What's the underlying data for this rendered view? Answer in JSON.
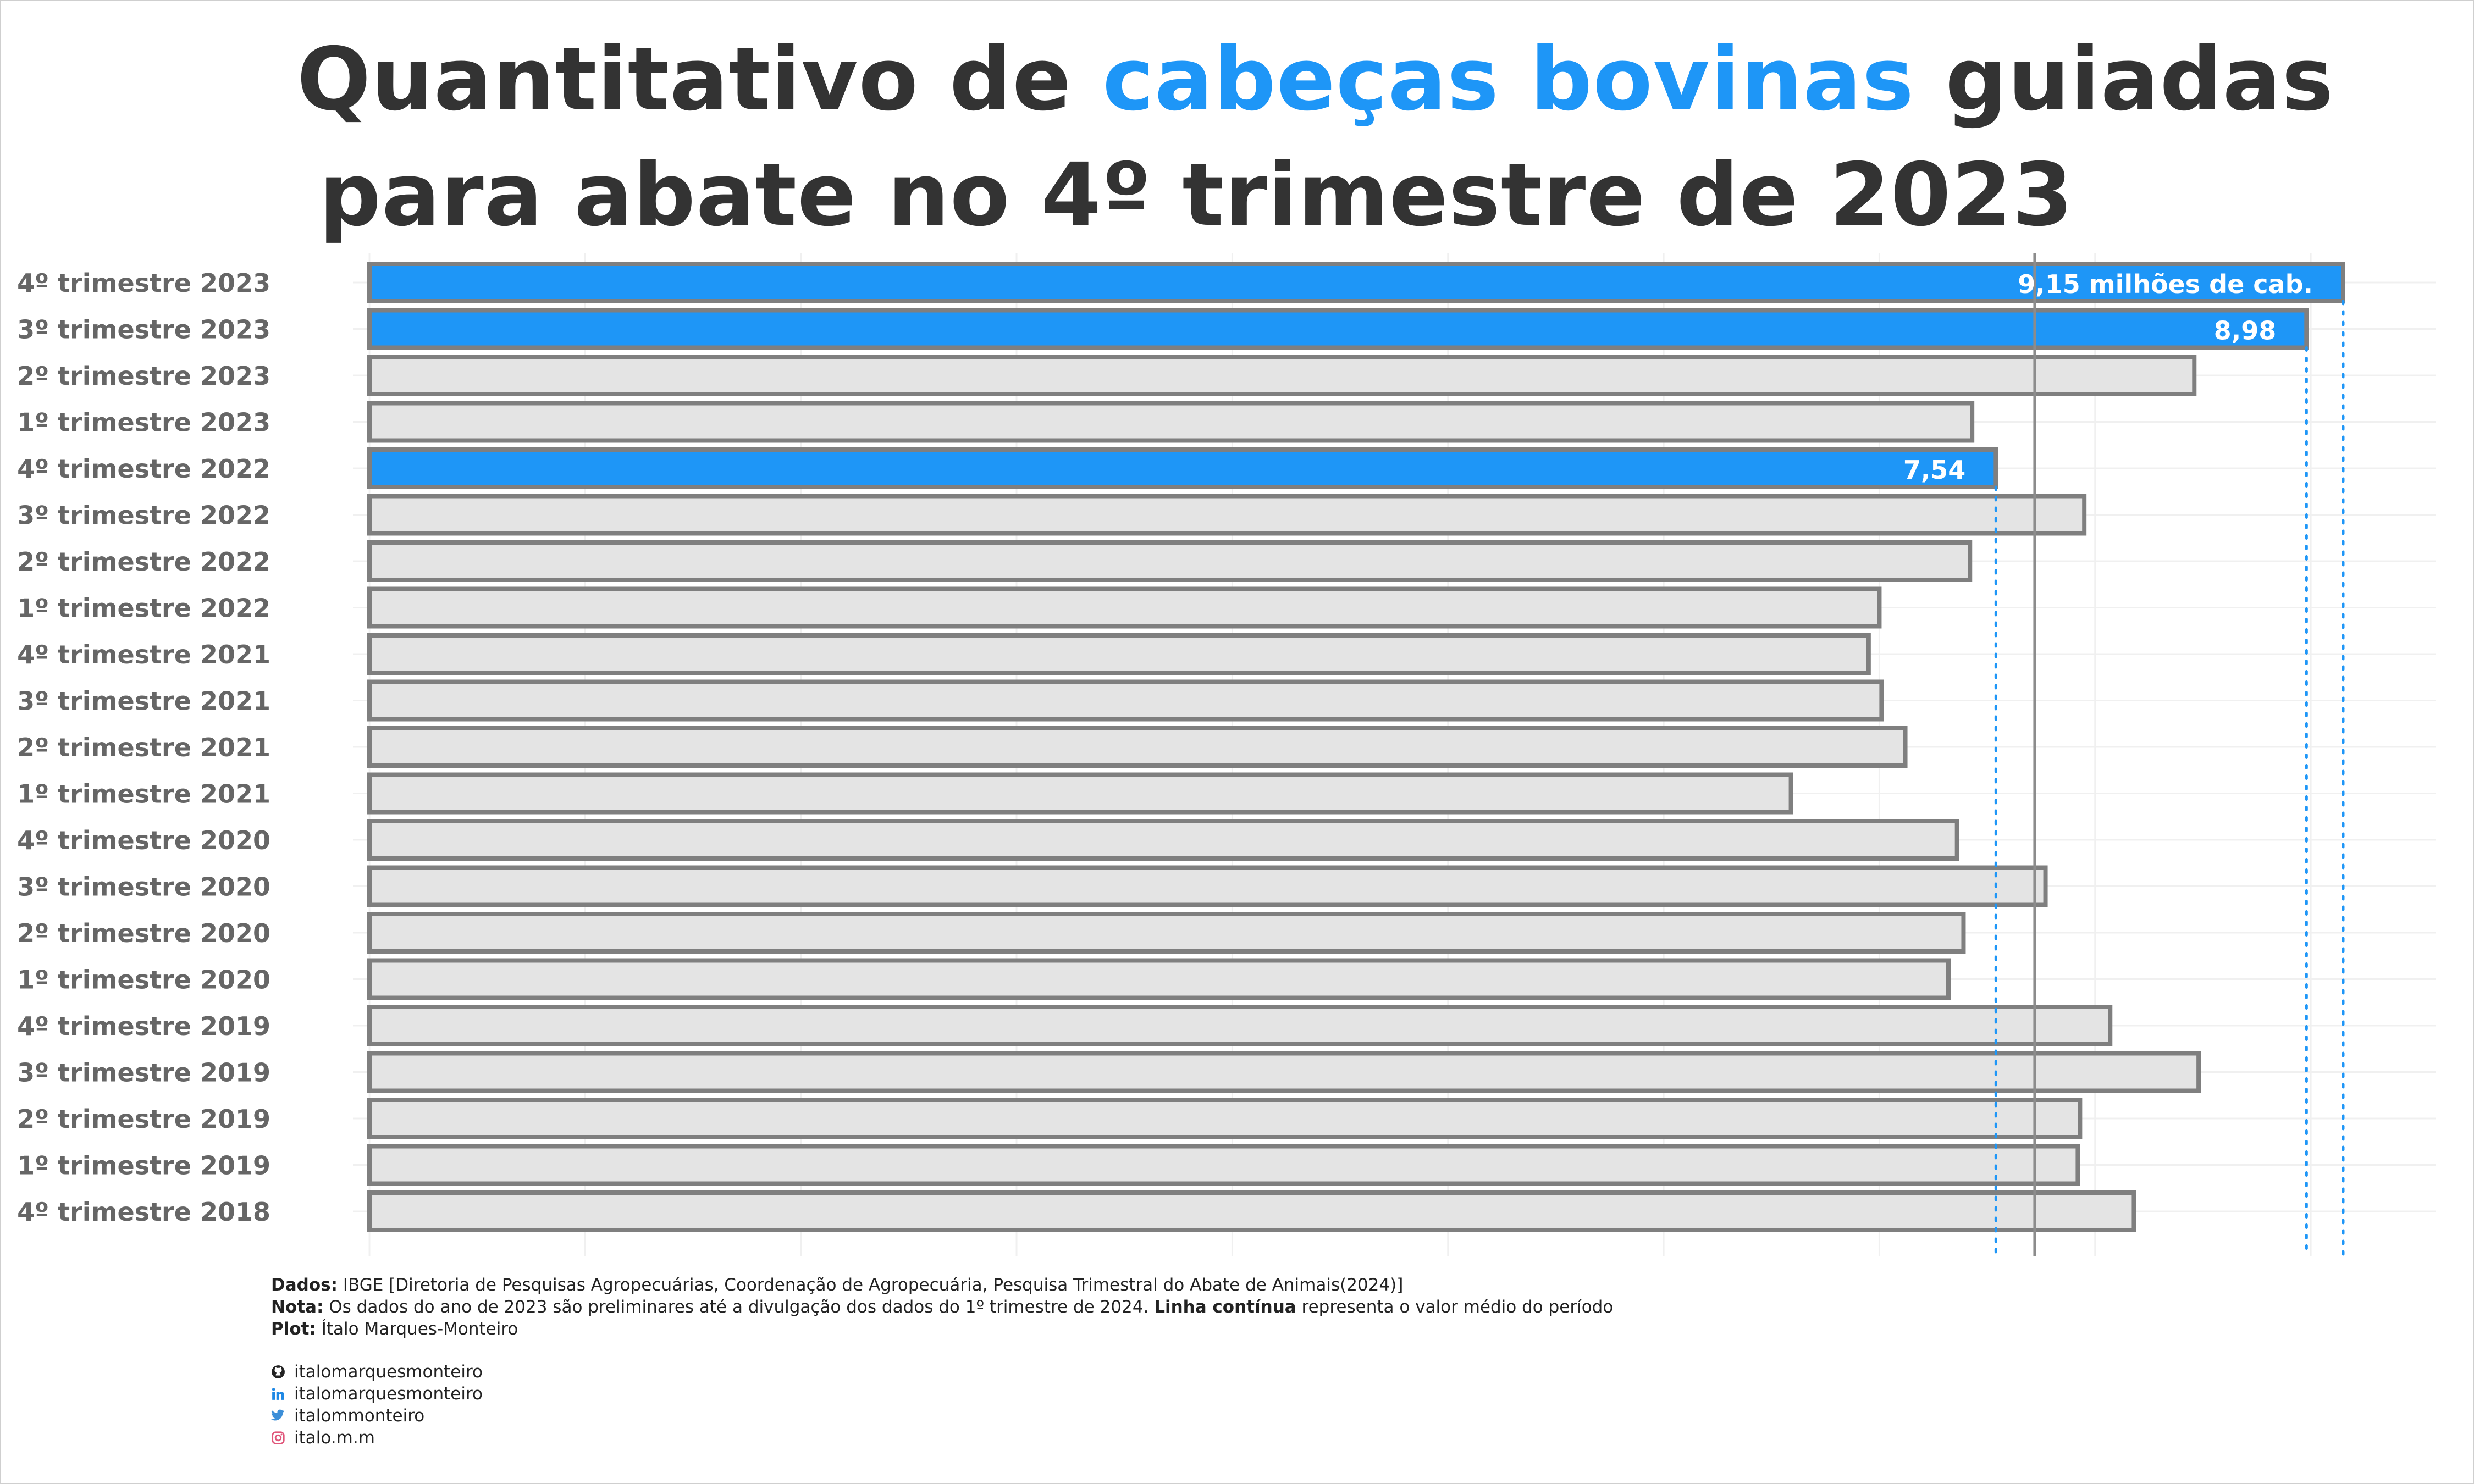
{
  "title": {
    "part1": "Quantitativo de ",
    "highlight": "cabeças bovinas",
    "part2": " guiadas",
    "line2": "para abate no 4º trimestre de 2023"
  },
  "colors": {
    "highlight": "#1e96f7",
    "bar_default": "#e4e4e4",
    "bar_border": "#7f7f7f",
    "reference_line": "#8c8c8c",
    "title_text": "#333333"
  },
  "chart_data": {
    "type": "bar",
    "orientation": "horizontal",
    "categories": [
      "4º trimestre 2023",
      "3º trimestre 2023",
      "2º trimestre 2023",
      "1º trimestre 2023",
      "4º trimestre 2022",
      "3º trimestre 2022",
      "2º trimestre 2022",
      "1º trimestre 2022",
      "4º trimestre 2021",
      "3º trimestre 2021",
      "2º trimestre 2021",
      "1º trimestre 2021",
      "4º trimestre 2020",
      "3º trimestre 2020",
      "2º trimestre 2020",
      "1º trimestre 2020",
      "4º trimestre 2019",
      "3º trimestre 2019",
      "2º trimestre 2019",
      "1º trimestre 2019",
      "4º trimestre 2018"
    ],
    "values": [
      9.15,
      8.98,
      8.46,
      7.43,
      7.54,
      7.95,
      7.42,
      7.0,
      6.95,
      7.01,
      7.12,
      6.59,
      7.36,
      7.77,
      7.39,
      7.32,
      8.07,
      8.48,
      7.93,
      7.92,
      8.18
    ],
    "highlighted": [
      true,
      true,
      false,
      false,
      true,
      false,
      false,
      false,
      false,
      false,
      false,
      false,
      false,
      false,
      false,
      false,
      false,
      false,
      false,
      false,
      false
    ],
    "labels": [
      "9,15 milhões de cab.",
      "8,98",
      "",
      "",
      "7,54",
      "",
      "",
      "",
      "",
      "",
      "",
      "",
      "",
      "",
      "",
      "",
      "",
      "",
      "",
      "",
      ""
    ],
    "mean_line": 7.72,
    "xlim": [
      0,
      9.6
    ],
    "grid": true
  },
  "caption": {
    "dados_label": "Dados:",
    "dados_text": "IBGE [Diretoria de Pesquisas Agropecuárias, Coordenação de Agropecuária, Pesquisa Trimestral do Abate de Animais(2024)]",
    "nota_label": "Nota:",
    "nota_text1": "Os dados do ano de 2023 são preliminares até a divulgação dos dados do 1º trimestre de 2024.",
    "nota_bold": "Linha contínua",
    "nota_text2": "representa o valor médio do período",
    "plot_label": "Plot:",
    "plot_text": "Ítalo Marques-Monteiro"
  },
  "social": [
    {
      "icon": "github-icon",
      "handle": "italomarquesmonteiro"
    },
    {
      "icon": "linkedin-icon",
      "handle": "italomarquesmonteiro"
    },
    {
      "icon": "twitter-icon",
      "handle": "italommonteiro"
    },
    {
      "icon": "instagram-icon",
      "handle": "italo.m.m"
    }
  ]
}
